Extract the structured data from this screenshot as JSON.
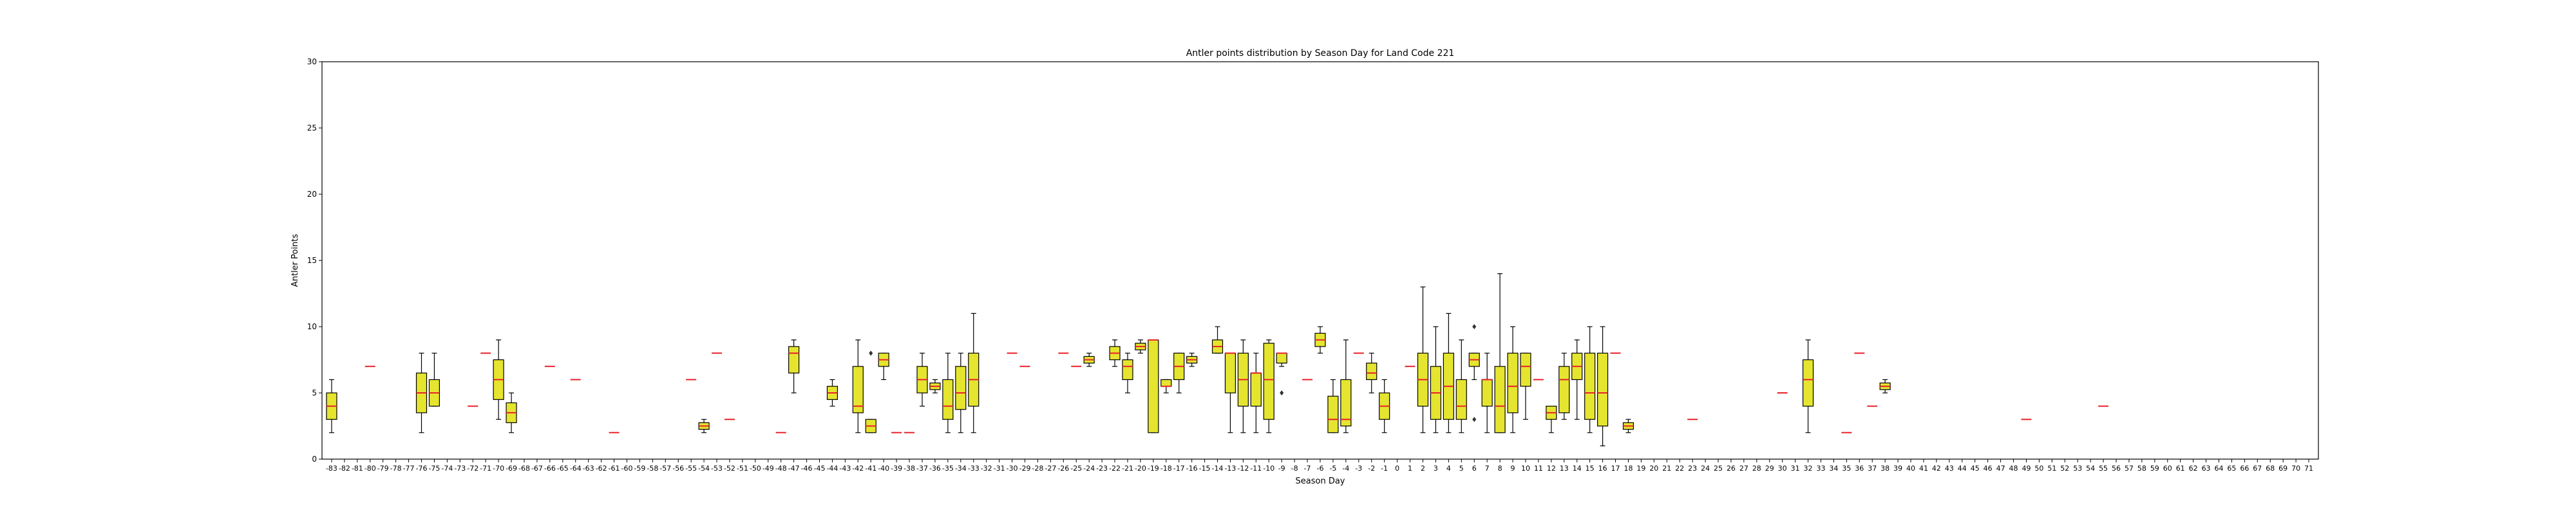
{
  "chart_data": {
    "type": "box",
    "title": "Antler points distribution by Season Day for Land Code 221",
    "xlabel": "Season Day",
    "ylabel": "Antler Points",
    "ylim": [
      0,
      30
    ],
    "yticks": [
      0,
      5,
      10,
      15,
      20,
      25,
      30
    ],
    "grid": false,
    "colors": {
      "box_fill": "#e5e52f",
      "box_edge": "#000000",
      "median": "#e8212a",
      "background": "#ffffff"
    },
    "categories": [
      "-83",
      "-82",
      "-81",
      "-80",
      "-79",
      "-78",
      "-77",
      "-76",
      "-75",
      "-74",
      "-73",
      "-72",
      "-71",
      "-70",
      "-69",
      "-68",
      "-67",
      "-66",
      "-65",
      "-64",
      "-63",
      "-62",
      "-61",
      "-60",
      "-59",
      "-58",
      "-57",
      "-56",
      "-55",
      "-54",
      "-53",
      "-52",
      "-51",
      "-50",
      "-49",
      "-48",
      "-47",
      "-46",
      "-45",
      "-44",
      "-43",
      "-42",
      "-41",
      "-40",
      "-39",
      "-38",
      "-37",
      "-36",
      "-35",
      "-34",
      "-33",
      "-32",
      "-31",
      "-30",
      "-29",
      "-28",
      "-27",
      "-26",
      "-25",
      "-24",
      "-23",
      "-22",
      "-21",
      "-20",
      "-19",
      "-18",
      "-17",
      "-16",
      "-15",
      "-14",
      "-13",
      "-12",
      "-11",
      "-10",
      "-9",
      "-8",
      "-7",
      "-6",
      "-5",
      "-4",
      "-3",
      "-2",
      "-1",
      "0",
      "1",
      "2",
      "3",
      "4",
      "5",
      "6",
      "7",
      "8",
      "9",
      "10",
      "11",
      "12",
      "13",
      "14",
      "15",
      "16",
      "17",
      "18",
      "19",
      "20",
      "21",
      "22",
      "23",
      "24",
      "25",
      "26",
      "27",
      "28",
      "29",
      "30",
      "31",
      "32",
      "33",
      "34",
      "35",
      "36",
      "37",
      "38",
      "39",
      "40",
      "41",
      "42",
      "43",
      "44",
      "45",
      "46",
      "47",
      "48",
      "49",
      "50",
      "51",
      "52",
      "53",
      "54",
      "55",
      "56",
      "57",
      "58",
      "59",
      "60",
      "61",
      "62",
      "63",
      "64",
      "65",
      "66",
      "67",
      "68",
      "69",
      "70",
      "71"
    ],
    "boxes": [
      {
        "day": "-83",
        "whislo": 2,
        "q1": 3,
        "med": 4,
        "q3": 5,
        "whishi": 6,
        "fliers": []
      },
      {
        "day": "-80",
        "whislo": 7,
        "q1": 7,
        "med": 7,
        "q3": 7,
        "whishi": 7,
        "fliers": []
      },
      {
        "day": "-76",
        "whislo": 2,
        "q1": 3.5,
        "med": 5,
        "q3": 6.5,
        "whishi": 8,
        "fliers": []
      },
      {
        "day": "-75",
        "whislo": 4,
        "q1": 4,
        "med": 5,
        "q3": 6,
        "whishi": 8,
        "fliers": []
      },
      {
        "day": "-72",
        "whislo": 4,
        "q1": 4,
        "med": 4,
        "q3": 4,
        "whishi": 4,
        "fliers": []
      },
      {
        "day": "-71",
        "whislo": 8,
        "q1": 8,
        "med": 8,
        "q3": 8,
        "whishi": 8,
        "fliers": []
      },
      {
        "day": "-70",
        "whislo": 3,
        "q1": 4.5,
        "med": 6,
        "q3": 7.5,
        "whishi": 9,
        "fliers": []
      },
      {
        "day": "-69",
        "whislo": 2,
        "q1": 2.75,
        "med": 3.5,
        "q3": 4.25,
        "whishi": 5,
        "fliers": []
      },
      {
        "day": "-66",
        "whislo": 7,
        "q1": 7,
        "med": 7,
        "q3": 7,
        "whishi": 7,
        "fliers": []
      },
      {
        "day": "-64",
        "whislo": 6,
        "q1": 6,
        "med": 6,
        "q3": 6,
        "whishi": 6,
        "fliers": []
      },
      {
        "day": "-61",
        "whislo": 2,
        "q1": 2,
        "med": 2,
        "q3": 2,
        "whishi": 2,
        "fliers": []
      },
      {
        "day": "-55",
        "whislo": 6,
        "q1": 6,
        "med": 6,
        "q3": 6,
        "whishi": 6,
        "fliers": []
      },
      {
        "day": "-54",
        "whislo": 2,
        "q1": 2.25,
        "med": 2.5,
        "q3": 2.75,
        "whishi": 3,
        "fliers": []
      },
      {
        "day": "-53",
        "whislo": 8,
        "q1": 8,
        "med": 8,
        "q3": 8,
        "whishi": 8,
        "fliers": []
      },
      {
        "day": "-52",
        "whislo": 3,
        "q1": 3,
        "med": 3,
        "q3": 3,
        "whishi": 3,
        "fliers": []
      },
      {
        "day": "-48",
        "whislo": 2,
        "q1": 2,
        "med": 2,
        "q3": 2,
        "whishi": 2,
        "fliers": []
      },
      {
        "day": "-47",
        "whislo": 5,
        "q1": 6.5,
        "med": 8,
        "q3": 8.5,
        "whishi": 9,
        "fliers": []
      },
      {
        "day": "-44",
        "whislo": 4,
        "q1": 4.5,
        "med": 5,
        "q3": 5.5,
        "whishi": 6,
        "fliers": []
      },
      {
        "day": "-42",
        "whislo": 2,
        "q1": 3.5,
        "med": 4,
        "q3": 7,
        "whishi": 9,
        "fliers": []
      },
      {
        "day": "-41",
        "whislo": 2,
        "q1": 2,
        "med": 2.5,
        "q3": 3,
        "whishi": 3,
        "fliers": [
          8
        ]
      },
      {
        "day": "-40",
        "whislo": 6,
        "q1": 7,
        "med": 7.5,
        "q3": 8,
        "whishi": 8,
        "fliers": []
      },
      {
        "day": "-39",
        "whislo": 2,
        "q1": 2,
        "med": 2,
        "q3": 2,
        "whishi": 2,
        "fliers": []
      },
      {
        "day": "-38",
        "whislo": 2,
        "q1": 2,
        "med": 2,
        "q3": 2,
        "whishi": 2,
        "fliers": []
      },
      {
        "day": "-37",
        "whislo": 4,
        "q1": 5,
        "med": 6,
        "q3": 7,
        "whishi": 8,
        "fliers": []
      },
      {
        "day": "-36",
        "whislo": 5,
        "q1": 5.25,
        "med": 5.5,
        "q3": 5.75,
        "whishi": 6,
        "fliers": []
      },
      {
        "day": "-35",
        "whislo": 2,
        "q1": 3,
        "med": 4,
        "q3": 6,
        "whishi": 8,
        "fliers": []
      },
      {
        "day": "-34",
        "whislo": 2,
        "q1": 3.75,
        "med": 5,
        "q3": 7,
        "whishi": 8,
        "fliers": []
      },
      {
        "day": "-33",
        "whislo": 2,
        "q1": 4,
        "med": 6,
        "q3": 8,
        "whishi": 11,
        "fliers": []
      },
      {
        "day": "-30",
        "whislo": 8,
        "q1": 8,
        "med": 8,
        "q3": 8,
        "whishi": 8,
        "fliers": []
      },
      {
        "day": "-29",
        "whislo": 7,
        "q1": 7,
        "med": 7,
        "q3": 7,
        "whishi": 7,
        "fliers": []
      },
      {
        "day": "-26",
        "whislo": 8,
        "q1": 8,
        "med": 8,
        "q3": 8,
        "whishi": 8,
        "fliers": []
      },
      {
        "day": "-25",
        "whislo": 7,
        "q1": 7,
        "med": 7,
        "q3": 7,
        "whishi": 7,
        "fliers": []
      },
      {
        "day": "-24",
        "whislo": 7,
        "q1": 7.25,
        "med": 7.5,
        "q3": 7.75,
        "whishi": 8,
        "fliers": []
      },
      {
        "day": "-22",
        "whislo": 7,
        "q1": 7.5,
        "med": 8,
        "q3": 8.5,
        "whishi": 9,
        "fliers": []
      },
      {
        "day": "-21",
        "whislo": 5,
        "q1": 6,
        "med": 7,
        "q3": 7.5,
        "whishi": 8,
        "fliers": []
      },
      {
        "day": "-20",
        "whislo": 8,
        "q1": 8.25,
        "med": 8.5,
        "q3": 8.75,
        "whishi": 9,
        "fliers": []
      },
      {
        "day": "-19",
        "whislo": 2,
        "q1": 2,
        "med": 9,
        "q3": 9,
        "whishi": 9,
        "fliers": []
      },
      {
        "day": "-18",
        "whislo": 5,
        "q1": 5.5,
        "med": 5.5,
        "q3": 6,
        "whishi": 6,
        "fliers": []
      },
      {
        "day": "-17",
        "whislo": 5,
        "q1": 6,
        "med": 7,
        "q3": 8,
        "whishi": 8,
        "fliers": []
      },
      {
        "day": "-16",
        "whislo": 7,
        "q1": 7.25,
        "med": 7.5,
        "q3": 7.75,
        "whishi": 8,
        "fliers": []
      },
      {
        "day": "-14",
        "whislo": 8,
        "q1": 8,
        "med": 8.5,
        "q3": 9,
        "whishi": 10,
        "fliers": []
      },
      {
        "day": "-13",
        "whislo": 2,
        "q1": 5,
        "med": 8,
        "q3": 8,
        "whishi": 8,
        "fliers": []
      },
      {
        "day": "-12",
        "whislo": 2,
        "q1": 4,
        "med": 6,
        "q3": 8,
        "whishi": 9,
        "fliers": []
      },
      {
        "day": "-11",
        "whislo": 2,
        "q1": 4,
        "med": 6.5,
        "q3": 6.5,
        "whishi": 8,
        "fliers": []
      },
      {
        "day": "-10",
        "whislo": 2,
        "q1": 3,
        "med": 6,
        "q3": 8.75,
        "whishi": 9,
        "fliers": []
      },
      {
        "day": "-9",
        "whislo": 7,
        "q1": 7.25,
        "med": 8,
        "q3": 8,
        "whishi": 8,
        "fliers": [
          5
        ]
      },
      {
        "day": "-7",
        "whislo": 6,
        "q1": 6,
        "med": 6,
        "q3": 6,
        "whishi": 6,
        "fliers": []
      },
      {
        "day": "-6",
        "whislo": 8,
        "q1": 8.5,
        "med": 9,
        "q3": 9.5,
        "whishi": 10,
        "fliers": []
      },
      {
        "day": "-5",
        "whislo": 2,
        "q1": 2,
        "med": 3,
        "q3": 4.75,
        "whishi": 6,
        "fliers": []
      },
      {
        "day": "-4",
        "whislo": 2,
        "q1": 2.5,
        "med": 3,
        "q3": 6,
        "whishi": 9,
        "fliers": []
      },
      {
        "day": "-3",
        "whislo": 8,
        "q1": 8,
        "med": 8,
        "q3": 8,
        "whishi": 8,
        "fliers": []
      },
      {
        "day": "-2",
        "whislo": 5,
        "q1": 6,
        "med": 6.5,
        "q3": 7.25,
        "whishi": 8,
        "fliers": []
      },
      {
        "day": "-1",
        "whislo": 2,
        "q1": 3,
        "med": 4,
        "q3": 5,
        "whishi": 6,
        "fliers": []
      },
      {
        "day": "1",
        "whislo": 7,
        "q1": 7,
        "med": 7,
        "q3": 7,
        "whishi": 7,
        "fliers": []
      },
      {
        "day": "2",
        "whislo": 2,
        "q1": 4,
        "med": 6,
        "q3": 8,
        "whishi": 13,
        "fliers": []
      },
      {
        "day": "3",
        "whislo": 2,
        "q1": 3,
        "med": 5,
        "q3": 7,
        "whishi": 10,
        "fliers": []
      },
      {
        "day": "4",
        "whislo": 2,
        "q1": 3,
        "med": 5.5,
        "q3": 8,
        "whishi": 11,
        "fliers": []
      },
      {
        "day": "5",
        "whislo": 2,
        "q1": 3,
        "med": 4,
        "q3": 6,
        "whishi": 9,
        "fliers": []
      },
      {
        "day": "6",
        "whislo": 6,
        "q1": 7,
        "med": 7.5,
        "q3": 8,
        "whishi": 8,
        "fliers": [
          3,
          10
        ]
      },
      {
        "day": "7",
        "whislo": 2,
        "q1": 4,
        "med": 6,
        "q3": 6,
        "whishi": 8,
        "fliers": []
      },
      {
        "day": "8",
        "whislo": 2,
        "q1": 2,
        "med": 4,
        "q3": 7,
        "whishi": 14,
        "fliers": []
      },
      {
        "day": "9",
        "whislo": 2,
        "q1": 3.5,
        "med": 5.5,
        "q3": 8,
        "whishi": 10,
        "fliers": []
      },
      {
        "day": "10",
        "whislo": 3,
        "q1": 5.5,
        "med": 7,
        "q3": 8,
        "whishi": 8,
        "fliers": []
      },
      {
        "day": "11",
        "whislo": 6,
        "q1": 6,
        "med": 6,
        "q3": 6,
        "whishi": 6,
        "fliers": []
      },
      {
        "day": "12",
        "whislo": 2,
        "q1": 3,
        "med": 3.5,
        "q3": 4,
        "whishi": 4,
        "fliers": []
      },
      {
        "day": "13",
        "whislo": 3,
        "q1": 3.5,
        "med": 6,
        "q3": 7,
        "whishi": 8,
        "fliers": []
      },
      {
        "day": "14",
        "whislo": 3,
        "q1": 6,
        "med": 7,
        "q3": 8,
        "whishi": 9,
        "fliers": []
      },
      {
        "day": "15",
        "whislo": 2,
        "q1": 3,
        "med": 5,
        "q3": 8,
        "whishi": 10,
        "fliers": []
      },
      {
        "day": "16",
        "whislo": 1,
        "q1": 2.5,
        "med": 5,
        "q3": 8,
        "whishi": 10,
        "fliers": []
      },
      {
        "day": "17",
        "whislo": 8,
        "q1": 8,
        "med": 8,
        "q3": 8,
        "whishi": 8,
        "fliers": []
      },
      {
        "day": "18",
        "whislo": 2,
        "q1": 2.25,
        "med": 2.5,
        "q3": 2.75,
        "whishi": 3,
        "fliers": []
      },
      {
        "day": "23",
        "whislo": 3,
        "q1": 3,
        "med": 3,
        "q3": 3,
        "whishi": 3,
        "fliers": []
      },
      {
        "day": "30",
        "whislo": 5,
        "q1": 5,
        "med": 5,
        "q3": 5,
        "whishi": 5,
        "fliers": []
      },
      {
        "day": "32",
        "whislo": 2,
        "q1": 4,
        "med": 6,
        "q3": 7.5,
        "whishi": 9,
        "fliers": []
      },
      {
        "day": "35",
        "whislo": 2,
        "q1": 2,
        "med": 2,
        "q3": 2,
        "whishi": 2,
        "fliers": []
      },
      {
        "day": "36",
        "whislo": 8,
        "q1": 8,
        "med": 8,
        "q3": 8,
        "whishi": 8,
        "fliers": []
      },
      {
        "day": "37",
        "whislo": 4,
        "q1": 4,
        "med": 4,
        "q3": 4,
        "whishi": 4,
        "fliers": []
      },
      {
        "day": "38",
        "whislo": 5,
        "q1": 5.25,
        "med": 5.5,
        "q3": 5.75,
        "whishi": 6,
        "fliers": []
      },
      {
        "day": "49",
        "whislo": 3,
        "q1": 3,
        "med": 3,
        "q3": 3,
        "whishi": 3,
        "fliers": []
      },
      {
        "day": "55",
        "whislo": 4,
        "q1": 4,
        "med": 4,
        "q3": 4,
        "whishi": 4,
        "fliers": []
      }
    ]
  }
}
